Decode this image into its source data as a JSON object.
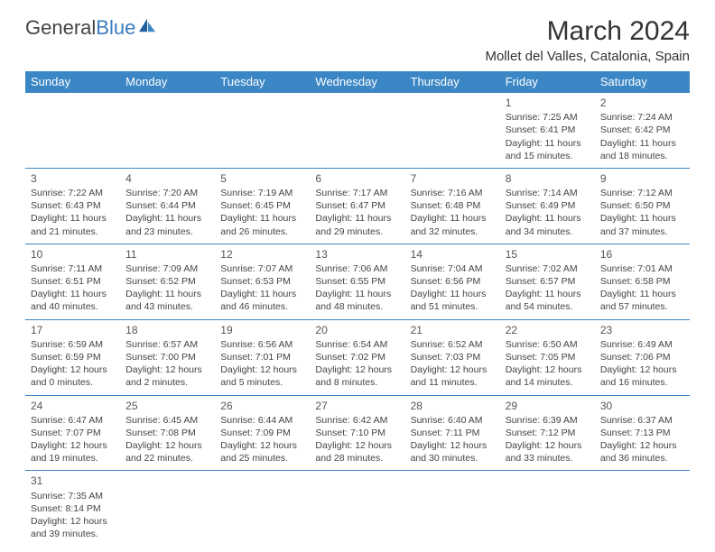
{
  "brand": {
    "general": "General",
    "blue": "Blue"
  },
  "month_title": "March 2024",
  "location": "Mollet del Valles, Catalonia, Spain",
  "colors": {
    "header_bg": "#3b86c4",
    "header_fg": "#ffffff",
    "border": "#3b86c4"
  },
  "day_headers": [
    "Sunday",
    "Monday",
    "Tuesday",
    "Wednesday",
    "Thursday",
    "Friday",
    "Saturday"
  ],
  "weeks": [
    [
      null,
      null,
      null,
      null,
      null,
      {
        "n": "1",
        "sr": "Sunrise: 7:25 AM",
        "ss": "Sunset: 6:41 PM",
        "dl": "Daylight: 11 hours and 15 minutes."
      },
      {
        "n": "2",
        "sr": "Sunrise: 7:24 AM",
        "ss": "Sunset: 6:42 PM",
        "dl": "Daylight: 11 hours and 18 minutes."
      }
    ],
    [
      {
        "n": "3",
        "sr": "Sunrise: 7:22 AM",
        "ss": "Sunset: 6:43 PM",
        "dl": "Daylight: 11 hours and 21 minutes."
      },
      {
        "n": "4",
        "sr": "Sunrise: 7:20 AM",
        "ss": "Sunset: 6:44 PM",
        "dl": "Daylight: 11 hours and 23 minutes."
      },
      {
        "n": "5",
        "sr": "Sunrise: 7:19 AM",
        "ss": "Sunset: 6:45 PM",
        "dl": "Daylight: 11 hours and 26 minutes."
      },
      {
        "n": "6",
        "sr": "Sunrise: 7:17 AM",
        "ss": "Sunset: 6:47 PM",
        "dl": "Daylight: 11 hours and 29 minutes."
      },
      {
        "n": "7",
        "sr": "Sunrise: 7:16 AM",
        "ss": "Sunset: 6:48 PM",
        "dl": "Daylight: 11 hours and 32 minutes."
      },
      {
        "n": "8",
        "sr": "Sunrise: 7:14 AM",
        "ss": "Sunset: 6:49 PM",
        "dl": "Daylight: 11 hours and 34 minutes."
      },
      {
        "n": "9",
        "sr": "Sunrise: 7:12 AM",
        "ss": "Sunset: 6:50 PM",
        "dl": "Daylight: 11 hours and 37 minutes."
      }
    ],
    [
      {
        "n": "10",
        "sr": "Sunrise: 7:11 AM",
        "ss": "Sunset: 6:51 PM",
        "dl": "Daylight: 11 hours and 40 minutes."
      },
      {
        "n": "11",
        "sr": "Sunrise: 7:09 AM",
        "ss": "Sunset: 6:52 PM",
        "dl": "Daylight: 11 hours and 43 minutes."
      },
      {
        "n": "12",
        "sr": "Sunrise: 7:07 AM",
        "ss": "Sunset: 6:53 PM",
        "dl": "Daylight: 11 hours and 46 minutes."
      },
      {
        "n": "13",
        "sr": "Sunrise: 7:06 AM",
        "ss": "Sunset: 6:55 PM",
        "dl": "Daylight: 11 hours and 48 minutes."
      },
      {
        "n": "14",
        "sr": "Sunrise: 7:04 AM",
        "ss": "Sunset: 6:56 PM",
        "dl": "Daylight: 11 hours and 51 minutes."
      },
      {
        "n": "15",
        "sr": "Sunrise: 7:02 AM",
        "ss": "Sunset: 6:57 PM",
        "dl": "Daylight: 11 hours and 54 minutes."
      },
      {
        "n": "16",
        "sr": "Sunrise: 7:01 AM",
        "ss": "Sunset: 6:58 PM",
        "dl": "Daylight: 11 hours and 57 minutes."
      }
    ],
    [
      {
        "n": "17",
        "sr": "Sunrise: 6:59 AM",
        "ss": "Sunset: 6:59 PM",
        "dl": "Daylight: 12 hours and 0 minutes."
      },
      {
        "n": "18",
        "sr": "Sunrise: 6:57 AM",
        "ss": "Sunset: 7:00 PM",
        "dl": "Daylight: 12 hours and 2 minutes."
      },
      {
        "n": "19",
        "sr": "Sunrise: 6:56 AM",
        "ss": "Sunset: 7:01 PM",
        "dl": "Daylight: 12 hours and 5 minutes."
      },
      {
        "n": "20",
        "sr": "Sunrise: 6:54 AM",
        "ss": "Sunset: 7:02 PM",
        "dl": "Daylight: 12 hours and 8 minutes."
      },
      {
        "n": "21",
        "sr": "Sunrise: 6:52 AM",
        "ss": "Sunset: 7:03 PM",
        "dl": "Daylight: 12 hours and 11 minutes."
      },
      {
        "n": "22",
        "sr": "Sunrise: 6:50 AM",
        "ss": "Sunset: 7:05 PM",
        "dl": "Daylight: 12 hours and 14 minutes."
      },
      {
        "n": "23",
        "sr": "Sunrise: 6:49 AM",
        "ss": "Sunset: 7:06 PM",
        "dl": "Daylight: 12 hours and 16 minutes."
      }
    ],
    [
      {
        "n": "24",
        "sr": "Sunrise: 6:47 AM",
        "ss": "Sunset: 7:07 PM",
        "dl": "Daylight: 12 hours and 19 minutes."
      },
      {
        "n": "25",
        "sr": "Sunrise: 6:45 AM",
        "ss": "Sunset: 7:08 PM",
        "dl": "Daylight: 12 hours and 22 minutes."
      },
      {
        "n": "26",
        "sr": "Sunrise: 6:44 AM",
        "ss": "Sunset: 7:09 PM",
        "dl": "Daylight: 12 hours and 25 minutes."
      },
      {
        "n": "27",
        "sr": "Sunrise: 6:42 AM",
        "ss": "Sunset: 7:10 PM",
        "dl": "Daylight: 12 hours and 28 minutes."
      },
      {
        "n": "28",
        "sr": "Sunrise: 6:40 AM",
        "ss": "Sunset: 7:11 PM",
        "dl": "Daylight: 12 hours and 30 minutes."
      },
      {
        "n": "29",
        "sr": "Sunrise: 6:39 AM",
        "ss": "Sunset: 7:12 PM",
        "dl": "Daylight: 12 hours and 33 minutes."
      },
      {
        "n": "30",
        "sr": "Sunrise: 6:37 AM",
        "ss": "Sunset: 7:13 PM",
        "dl": "Daylight: 12 hours and 36 minutes."
      }
    ],
    [
      {
        "n": "31",
        "sr": "Sunrise: 7:35 AM",
        "ss": "Sunset: 8:14 PM",
        "dl": "Daylight: 12 hours and 39 minutes."
      },
      null,
      null,
      null,
      null,
      null,
      null
    ]
  ]
}
